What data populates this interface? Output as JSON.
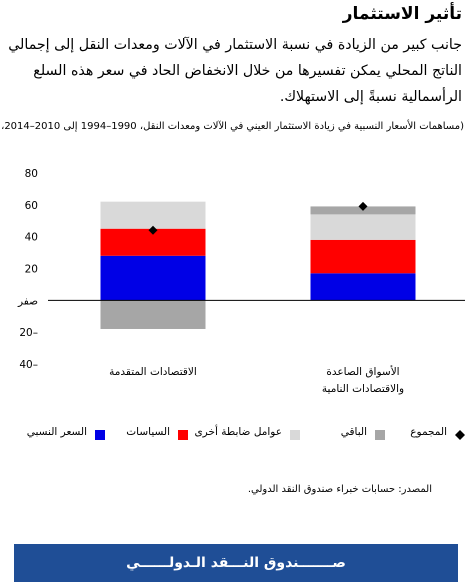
{
  "header": {
    "title": "تأثير الاستثمار",
    "intro": "جانب كبير من الزيادة في نسبة الاستثمار في الآلات ومعدات النقل إلى إجمالي الناتج المحلي يمكن تفسيرها من خلال الانخفاض الحاد في سعر هذه السلع الرأسمالية نسبةً إلى الاستهلاك.",
    "subtitle": "(مساهمات الأسعار النسبية في زيادة الاستثمار العيني في الآلات ومعدات النقل، 1990–1994 إلى 2010–2014، %)"
  },
  "chart_data": {
    "type": "bar",
    "stacked": true,
    "categories": [
      [
        "الاقتصادات المتقدمة"
      ],
      [
        "الأسواق الصاعدة",
        "والاقتصادات النامية"
      ]
    ],
    "series": [
      {
        "name": "السعر النسبي",
        "color": "#0000e6",
        "values": [
          28,
          17
        ]
      },
      {
        "name": "السياسات",
        "color": "#ff0000",
        "values": [
          17,
          21
        ]
      },
      {
        "name": "عوامل ضابطة أخرى",
        "color": "#d9d9d9",
        "values": [
          17,
          16
        ]
      },
      {
        "name": "الباقي",
        "color": "#a6a6a6",
        "values": [
          -18,
          5
        ]
      }
    ],
    "total": {
      "name": "المجموع",
      "values": [
        44,
        59
      ]
    },
    "yticks": [
      {
        "value": 80,
        "label": "80"
      },
      {
        "value": 60,
        "label": "60"
      },
      {
        "value": 40,
        "label": "40"
      },
      {
        "value": 20,
        "label": "20"
      },
      {
        "value": 0,
        "label": "صفر"
      },
      {
        "value": -20,
        "label": "20–"
      },
      {
        "value": -40,
        "label": "40–"
      }
    ],
    "ylim": [
      -40,
      80
    ],
    "grid": false,
    "legend": "bottom"
  },
  "legend": {
    "items": [
      {
        "label": "المجموع",
        "marker": "diamond",
        "color": "#000000"
      },
      {
        "label": "الباقي",
        "marker": "square",
        "color": "#a6a6a6"
      },
      {
        "label": "عوامل ضابطة أخرى",
        "marker": "square",
        "color": "#d9d9d9"
      },
      {
        "label": "السياسات",
        "marker": "square",
        "color": "#ff0000"
      },
      {
        "label": "السعر النسبي",
        "marker": "square",
        "color": "#0000e6"
      }
    ]
  },
  "source": "المصدر: حسابات خبراء صندوق النقد الدولي.",
  "footer": {
    "label": "صـــــــندوق النـــقد الـدولــــــي"
  }
}
